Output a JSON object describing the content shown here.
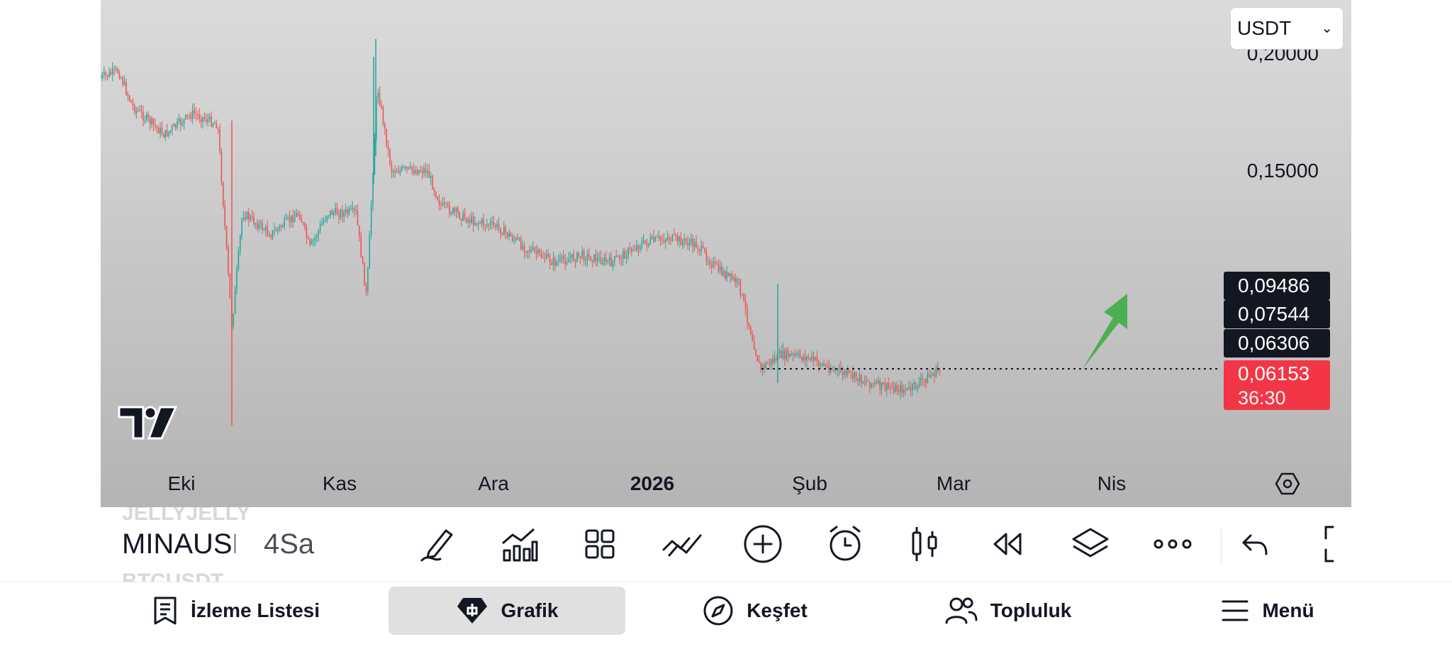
{
  "chart": {
    "currency": "USDT",
    "y_axis_labels": [
      "0,20000",
      "0,15000"
    ],
    "x_axis_labels": [
      "Eki",
      "Kas",
      "Ara",
      "2026",
      "Şub",
      "Mar",
      "Nis"
    ],
    "price_tags": [
      "0,09486",
      "0,07544",
      "0,06306"
    ],
    "current_price": "0,06153",
    "countdown": "36:30",
    "colors": {
      "up": "#26a69a",
      "down": "#ef5350",
      "current_price_bg": "#f23645",
      "arrow": "#4caf50"
    }
  },
  "toolbar": {
    "symbol_above": "JELLYJELLY",
    "symbol": "MINAUSDT",
    "symbol_below": "BTCUSDT",
    "interval": "4Sa",
    "tools": [
      "draw-pen-icon",
      "indicators-icon",
      "layouts-icon",
      "drawing-tools-icon",
      "add-icon",
      "alert-clock-icon",
      "candle-type-icon",
      "replay-icon",
      "layers-icon",
      "more-icon",
      "undo-icon",
      "fullscreen-icon"
    ]
  },
  "nav": {
    "items": [
      {
        "label": "İzleme Listesi",
        "icon": "watchlist-icon"
      },
      {
        "label": "Grafik",
        "icon": "chart-diamond-icon",
        "active": true
      },
      {
        "label": "Keşfet",
        "icon": "compass-icon"
      },
      {
        "label": "Topluluk",
        "icon": "community-icon"
      },
      {
        "label": "Menü",
        "icon": "menu-icon"
      }
    ]
  }
}
